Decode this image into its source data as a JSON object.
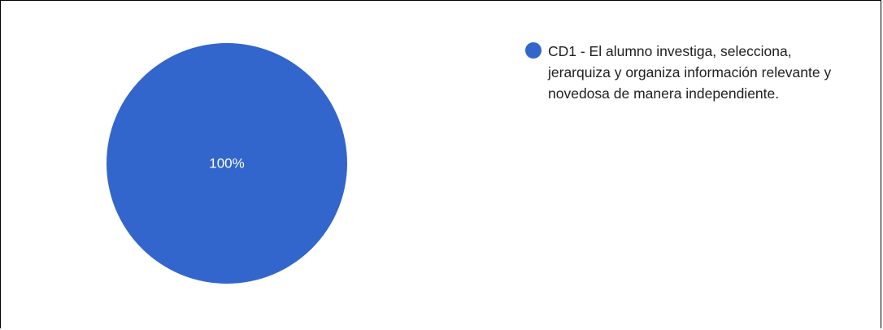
{
  "chart_data": {
    "type": "pie",
    "title": "",
    "categories": [
      "CD1 - El alumno investiga, selecciona, jerarquiza y organiza información relevante y novedosa de manera independiente."
    ],
    "values": [
      100
    ],
    "slice_labels": [
      "100%"
    ],
    "colors": [
      "#3366cc"
    ],
    "legend": {
      "placement": "right",
      "entries": [
        "CD1 - El alumno investiga, selecciona, jerarquiza y organiza información relevante y novedosa de manera independiente."
      ]
    }
  }
}
